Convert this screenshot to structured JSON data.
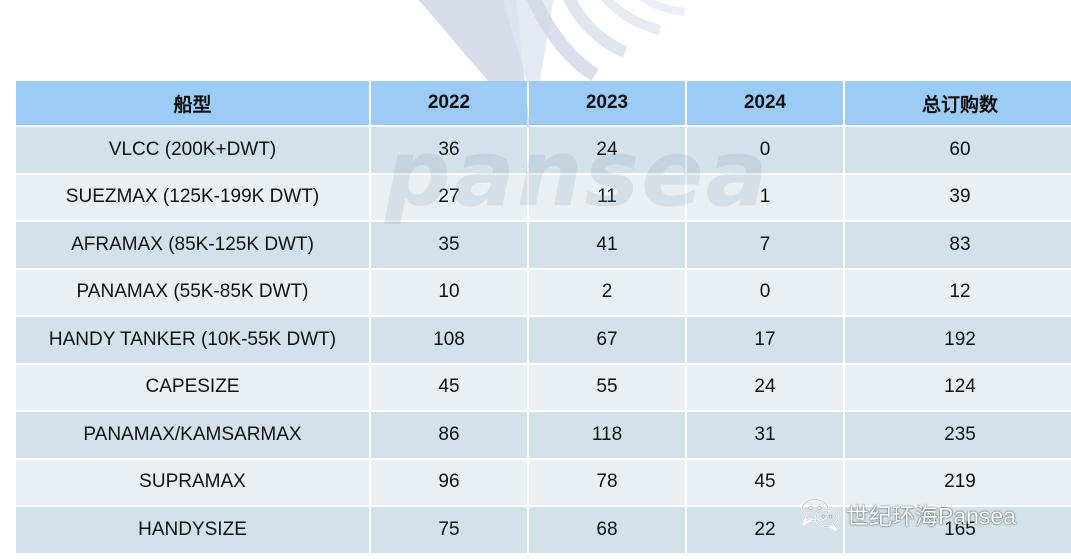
{
  "table": {
    "headers": [
      "船型",
      "2022",
      "2023",
      "2024",
      "总订购数"
    ],
    "rows": [
      [
        "VLCC (200K+DWT)",
        "36",
        "24",
        "0",
        "60"
      ],
      [
        "SUEZMAX (125K-199K DWT)",
        "27",
        "11",
        "1",
        "39"
      ],
      [
        "AFRAMAX (85K-125K DWT)",
        "35",
        "41",
        "7",
        "83"
      ],
      [
        "PANAMAX (55K-85K DWT)",
        "10",
        "2",
        "0",
        "12"
      ],
      [
        "HANDY TANKER (10K-55K DWT)",
        "108",
        "67",
        "17",
        "192"
      ],
      [
        "CAPESIZE",
        "45",
        "55",
        "24",
        "124"
      ],
      [
        "PANAMAX/KAMSARMAX",
        "86",
        "118",
        "31",
        "235"
      ],
      [
        "SUPRAMAX",
        "96",
        "78",
        "45",
        "219"
      ],
      [
        "HANDYSIZE",
        "75",
        "68",
        "22",
        "165"
      ]
    ]
  },
  "watermark": {
    "text": "pansea",
    "account_label": "世纪环海Pansea",
    "account_icon": "wechat-icon",
    "logo_icon": "pansea-logo-icon"
  },
  "colors": {
    "header_bg": "#9ccbf5",
    "row_odd_bg": "#d3e1ea",
    "row_even_bg": "#e9eff3"
  }
}
